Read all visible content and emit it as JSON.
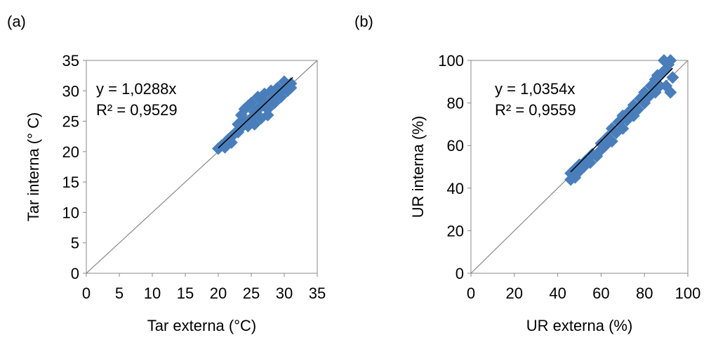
{
  "chart_data": [
    {
      "type": "scatter",
      "panel_label": "(a)",
      "x_label": "Tar externa (°C)",
      "y_label": "Tar interna (° C)",
      "annotations": [
        "y = 1,0288x",
        "R² = 0,9529"
      ],
      "xlim": [
        0,
        35
      ],
      "ylim": [
        0,
        35
      ],
      "xticks": [
        0,
        5,
        10,
        15,
        20,
        25,
        30,
        35
      ],
      "yticks": [
        0,
        5,
        10,
        15,
        20,
        25,
        30,
        35
      ],
      "color": "#4a7ebb",
      "x": [
        20,
        20.5,
        21,
        21.5,
        22,
        22.5,
        23,
        23,
        23.5,
        23.5,
        24,
        24,
        24.5,
        24.5,
        25,
        25,
        25.5,
        25.5,
        26,
        26,
        26.5,
        26.5,
        27,
        27,
        27.5,
        27.5,
        28,
        28,
        28.5,
        29,
        29,
        29.5,
        30,
        30,
        30.5,
        31,
        31,
        22,
        21
      ],
      "y": [
        20.5,
        21,
        21.2,
        22,
        22.5,
        23,
        23.2,
        24.5,
        24,
        26,
        25,
        27,
        24.2,
        27.5,
        25.5,
        28,
        26.5,
        24.5,
        27,
        29,
        25.5,
        28.5,
        27.5,
        29.5,
        27,
        26,
        28.5,
        30,
        28,
        29.5,
        30.5,
        29,
        30.5,
        31.5,
        30,
        31.2,
        30.5,
        21.5,
        20.7
      ],
      "trendline": {
        "x": [
          20,
          31.3
        ],
        "y": [
          20.6,
          32.2
        ]
      },
      "reference_line": {
        "x": [
          0,
          35
        ],
        "y": [
          0,
          35
        ]
      }
    },
    {
      "type": "scatter",
      "panel_label": "(b)",
      "x_label": "UR externa (%)",
      "y_label": "UR interna (%)",
      "annotations": [
        "y = 1,0354x",
        "R² = 0,9559"
      ],
      "xlim": [
        0,
        100
      ],
      "ylim": [
        0,
        100
      ],
      "xticks": [
        0,
        20,
        40,
        60,
        80,
        100
      ],
      "yticks": [
        0,
        20,
        40,
        60,
        80,
        100
      ],
      "color": "#4a7ebb",
      "x": [
        46,
        46,
        48,
        48,
        50,
        50,
        52,
        53,
        55,
        56,
        58,
        60,
        60,
        62,
        63,
        65,
        65,
        67,
        68,
        70,
        70,
        72,
        73,
        75,
        75,
        77,
        78,
        80,
        80,
        82,
        83,
        85,
        85,
        87,
        88,
        90,
        90,
        92,
        92,
        93,
        89,
        91,
        86
      ],
      "y": [
        44,
        47,
        45,
        49,
        48,
        51,
        50,
        53,
        52,
        56,
        55,
        58,
        61,
        60,
        64,
        62,
        68,
        66,
        71,
        68,
        74,
        72,
        76,
        74,
        79,
        77,
        82,
        80,
        85,
        83,
        88,
        85,
        91,
        88,
        94,
        88,
        96,
        85,
        100,
        92,
        100,
        98,
        93
      ],
      "trendline": {
        "x": [
          46,
          93
        ],
        "y": [
          47.6,
          96.3
        ]
      },
      "reference_line": {
        "x": [
          0,
          100
        ],
        "y": [
          0,
          100
        ]
      }
    }
  ]
}
